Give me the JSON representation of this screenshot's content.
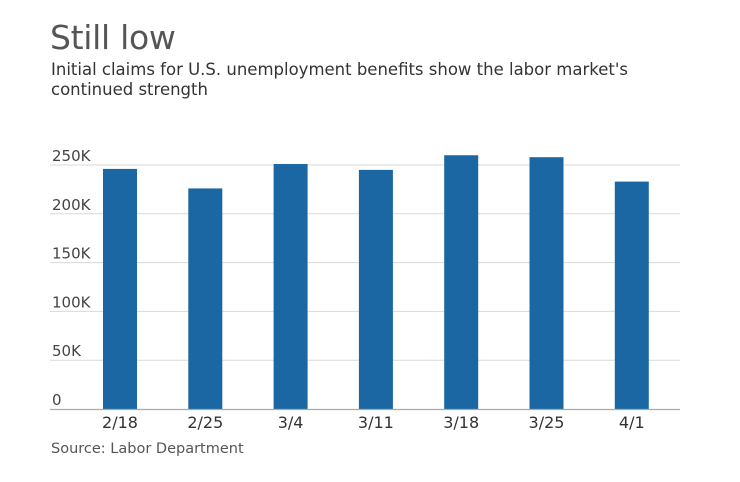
{
  "chart_data": {
    "type": "bar",
    "title": "Still low",
    "subtitle": "Initial claims for U.S. unemployment benefits show the labor market's continued strength",
    "source": "Source: Labor Department",
    "xlabel": "",
    "ylabel": "",
    "categories": [
      "2/18",
      "2/25",
      "3/4",
      "3/11",
      "3/18",
      "3/25",
      "4/1"
    ],
    "values": [
      246000,
      226000,
      251000,
      245000,
      260000,
      258000,
      233000
    ],
    "ylim": [
      0,
      250000
    ],
    "yticks": [
      0,
      50000,
      100000,
      150000,
      200000,
      250000
    ],
    "ytick_labels": [
      "0",
      "50K",
      "100K",
      "150K",
      "200K",
      "250K"
    ],
    "grid": true,
    "legend": "none",
    "bar_color": "#1a67a3",
    "grid_color": "#d9d9d9",
    "axis_color": "#aaaaaa"
  }
}
